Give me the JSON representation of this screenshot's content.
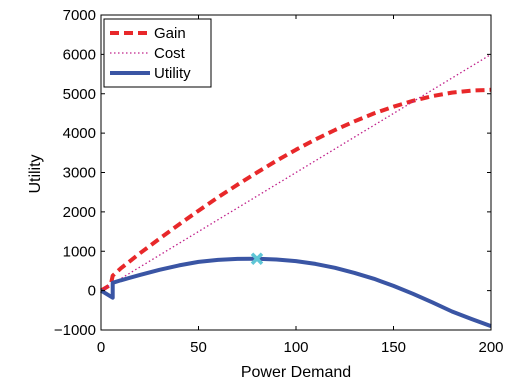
{
  "chart_data": {
    "type": "line",
    "xlabel": "Power Demand",
    "ylabel": "Utility",
    "xlim": [
      0,
      200
    ],
    "ylim": [
      -1000,
      7000
    ],
    "xticks": [
      "0",
      "50",
      "100",
      "150",
      "200"
    ],
    "yticks": [
      "−1000",
      "0",
      "1000",
      "2000",
      "3000",
      "4000",
      "5000",
      "6000",
      "7000"
    ],
    "grid": false,
    "legend_position": "top-left",
    "series": [
      {
        "name": "Gain",
        "color": "#e8282a",
        "style": "dashed",
        "x": [
          0,
          5,
          6,
          10,
          20,
          30,
          40,
          50,
          60,
          70,
          80,
          90,
          100,
          110,
          120,
          130,
          140,
          150,
          160,
          170,
          180,
          190,
          200
        ],
        "y": [
          0,
          150,
          380,
          560,
          950,
          1320,
          1680,
          2030,
          2370,
          2690,
          3000,
          3300,
          3580,
          3840,
          4080,
          4300,
          4500,
          4670,
          4820,
          4940,
          5030,
          5080,
          5100
        ]
      },
      {
        "name": "Cost",
        "color": "#c0208a",
        "style": "dotted",
        "x": [
          0,
          200
        ],
        "y": [
          0,
          6000
        ]
      },
      {
        "name": "Utility",
        "color": "#3a55a4",
        "style": "solid",
        "x": [
          0,
          6,
          6,
          10,
          20,
          30,
          40,
          50,
          60,
          70,
          80,
          90,
          100,
          110,
          120,
          130,
          140,
          150,
          160,
          170,
          180,
          190,
          200
        ],
        "y": [
          0,
          -180,
          200,
          260,
          400,
          530,
          640,
          730,
          780,
          805,
          810,
          790,
          750,
          680,
          580,
          450,
          300,
          120,
          -80,
          -300,
          -530,
          -720,
          -900
        ]
      }
    ],
    "markers": [
      {
        "x": 80,
        "y": 810,
        "color": "#5fc6d6",
        "shape": "x"
      }
    ]
  }
}
